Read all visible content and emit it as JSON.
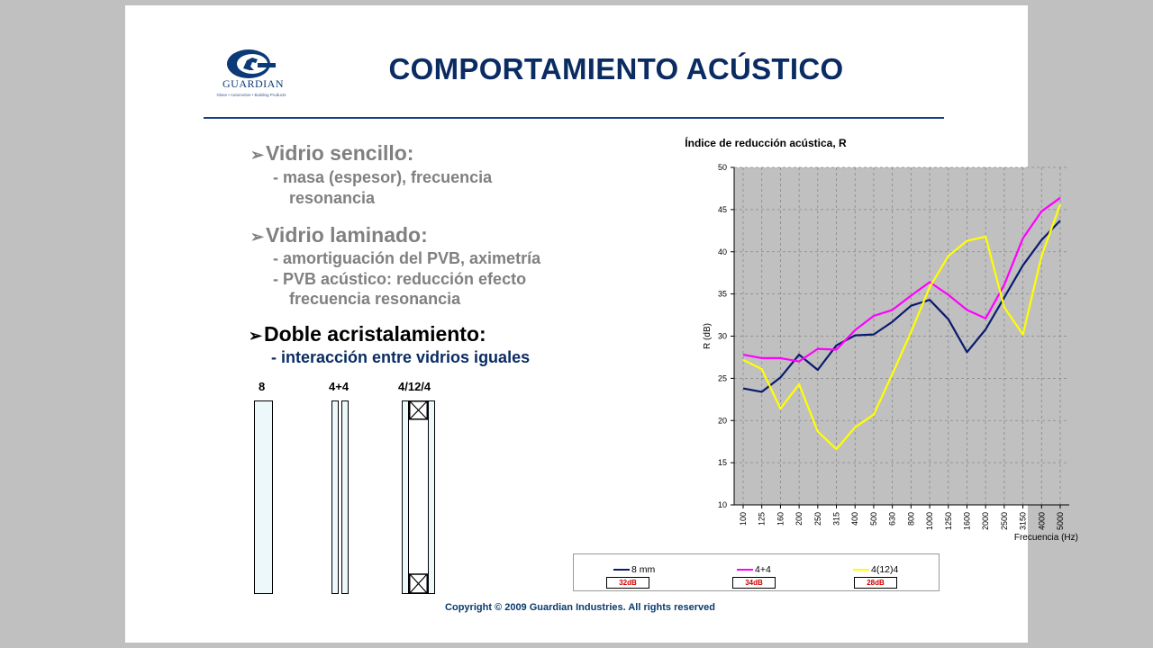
{
  "logo": {
    "word": "GUARDIAN",
    "tagline": "Glass • Automotive • Building Products"
  },
  "title": "COMPORTAMIENTO ACÚSTICO",
  "bullets": {
    "b1": {
      "heading": "Vidrio sencillo:",
      "line1": "- masa (espesor), frecuencia",
      "line2": "resonancia"
    },
    "b2": {
      "heading": "Vidrio laminado:",
      "line1": "- amortiguación del PVB, aximetría",
      "line2": "- PVB acústico: reducción efecto",
      "line3": "frecuencia resonancia"
    },
    "b3": {
      "heading": "Doble acristalamiento:",
      "line1": "- interacción entre vidrios iguales"
    }
  },
  "glass_labels": {
    "g1": "8",
    "g2": "4+4",
    "g3": "4/12/4"
  },
  "copyright": "Copyright © 2009 Guardian Industries. All rights reserved",
  "colors": {
    "series1": "#0a1a6e",
    "series2": "#ff00ff",
    "series3": "#ffff00",
    "plot_bg": "#c0c0c0",
    "rating": "#d00000"
  },
  "legend": {
    "s1": {
      "name": "8 mm",
      "rating": "32dB"
    },
    "s2": {
      "name": "4+4",
      "rating": "34dB"
    },
    "s3": {
      "name": "4(12)4",
      "rating": "28dB"
    }
  },
  "chart_data": {
    "type": "line",
    "title": "Índice de reducción acústica, R",
    "xlabel": "Frecuencia (Hz)",
    "ylabel": "R (dB)",
    "ylim": [
      10,
      50
    ],
    "yticks": [
      10,
      15,
      20,
      25,
      30,
      35,
      40,
      45,
      50
    ],
    "grid": true,
    "legend_position": "bottom",
    "categories": [
      "100",
      "125",
      "160",
      "200",
      "250",
      "315",
      "400",
      "500",
      "630",
      "800",
      "1000",
      "1250",
      "1600",
      "2000",
      "2500",
      "3150",
      "4000",
      "5000"
    ],
    "series": [
      {
        "name": "8 mm",
        "values": [
          23.8,
          23.4,
          25.1,
          27.8,
          26.0,
          28.9,
          30.1,
          30.2,
          31.7,
          33.6,
          34.3,
          32.0,
          28.1,
          30.8,
          34.6,
          38.4,
          41.4,
          43.7
        ]
      },
      {
        "name": "4+4",
        "values": [
          27.8,
          27.4,
          27.4,
          27.0,
          28.5,
          28.4,
          30.7,
          32.4,
          33.1,
          34.8,
          36.4,
          34.9,
          33.1,
          32.1,
          36.1,
          41.6,
          44.8,
          46.4
        ]
      },
      {
        "name": "4(12)4",
        "values": [
          27.2,
          26.1,
          21.4,
          24.3,
          18.7,
          16.6,
          19.2,
          20.7,
          25.5,
          30.5,
          35.8,
          39.5,
          41.3,
          41.8,
          33.4,
          30.2,
          39.5,
          45.6
        ]
      }
    ]
  }
}
